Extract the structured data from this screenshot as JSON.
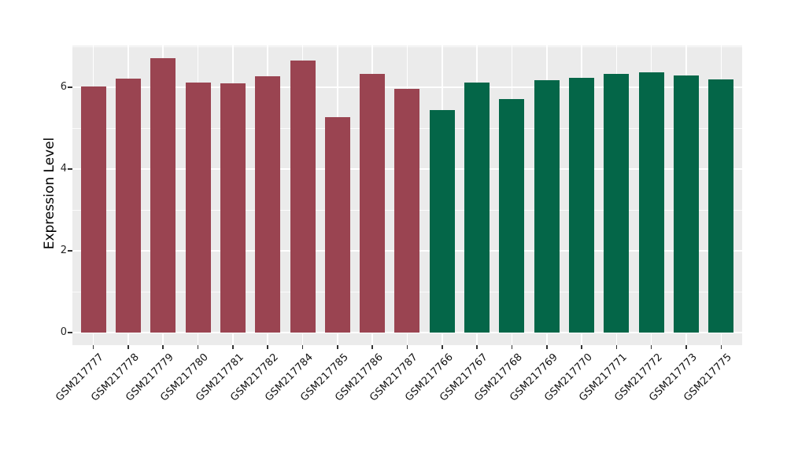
{
  "chart_data": {
    "type": "bar",
    "title": "",
    "xlabel": "",
    "ylabel": "Expression Level",
    "y_axis": {
      "major_ticks": [
        0,
        2,
        4,
        6
      ],
      "minor_ticks": [
        1,
        3,
        5,
        7
      ],
      "range": [
        -0.34,
        7.02
      ]
    },
    "legend": "none",
    "grid": "on",
    "bars": [
      {
        "label": "GSM217777",
        "value": 6.02,
        "group": "maroon"
      },
      {
        "label": "GSM217778",
        "value": 6.22,
        "group": "maroon"
      },
      {
        "label": "GSM217779",
        "value": 6.71,
        "group": "maroon"
      },
      {
        "label": "GSM217780",
        "value": 6.12,
        "group": "maroon"
      },
      {
        "label": "GSM217781",
        "value": 6.1,
        "group": "maroon"
      },
      {
        "label": "GSM217782",
        "value": 6.26,
        "group": "maroon"
      },
      {
        "label": "GSM217784",
        "value": 6.65,
        "group": "maroon"
      },
      {
        "label": "GSM217785",
        "value": 5.27,
        "group": "maroon"
      },
      {
        "label": "GSM217786",
        "value": 6.33,
        "group": "maroon"
      },
      {
        "label": "GSM217787",
        "value": 5.96,
        "group": "maroon"
      },
      {
        "label": "GSM217766",
        "value": 5.44,
        "group": "green"
      },
      {
        "label": "GSM217767",
        "value": 6.12,
        "group": "green"
      },
      {
        "label": "GSM217768",
        "value": 5.72,
        "group": "green"
      },
      {
        "label": "GSM217769",
        "value": 6.17,
        "group": "green"
      },
      {
        "label": "GSM217770",
        "value": 6.23,
        "group": "green"
      },
      {
        "label": "GSM217771",
        "value": 6.33,
        "group": "green"
      },
      {
        "label": "GSM217772",
        "value": 6.37,
        "group": "green"
      },
      {
        "label": "GSM217773",
        "value": 6.28,
        "group": "green"
      },
      {
        "label": "GSM217775",
        "value": 6.19,
        "group": "green"
      }
    ],
    "group_colors": {
      "maroon": "#9A4451",
      "green": "#046648"
    },
    "style_colors": {
      "panel_background": "#EBEBEB",
      "gridline": "#FFFFFF",
      "tick_mark": "#333333",
      "axis_text": "#262626",
      "page_background": "#FFFFFF"
    }
  }
}
